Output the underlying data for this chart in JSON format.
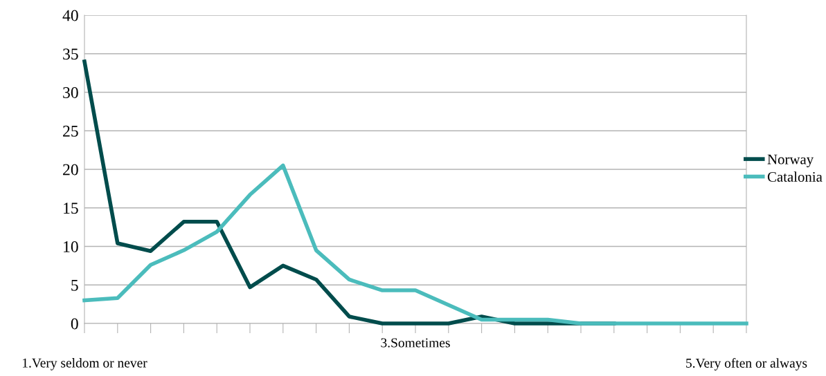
{
  "chart_data": {
    "type": "line",
    "categories": [
      "1.Very seldom or never",
      null,
      null,
      null,
      null,
      null,
      null,
      null,
      null,
      null,
      "3.Sometimes",
      null,
      null,
      null,
      null,
      null,
      null,
      null,
      null,
      null,
      "5.Very often or always"
    ],
    "series": [
      {
        "name": "Norway",
        "color": "#004c4c",
        "values": [
          34,
          10.4,
          9.4,
          13.2,
          13.2,
          4.7,
          7.5,
          5.7,
          0.9,
          0,
          0,
          0,
          0.9,
          0,
          0,
          0,
          0,
          null,
          null,
          null,
          null
        ]
      },
      {
        "name": "Catalonia",
        "color": "#4bbcbc",
        "values": [
          3,
          3.3,
          7.6,
          9.5,
          11.9,
          16.7,
          20.5,
          9.5,
          5.7,
          4.3,
          4.3,
          2.4,
          0.5,
          0.5,
          0.5,
          0,
          0,
          0,
          0,
          0,
          0
        ]
      }
    ],
    "ylim": [
      0,
      40
    ],
    "yticks": [
      0,
      5,
      10,
      15,
      20,
      25,
      30,
      35,
      40
    ],
    "grid": "y",
    "legend": "right",
    "marker": "none",
    "line_style": "solid"
  }
}
